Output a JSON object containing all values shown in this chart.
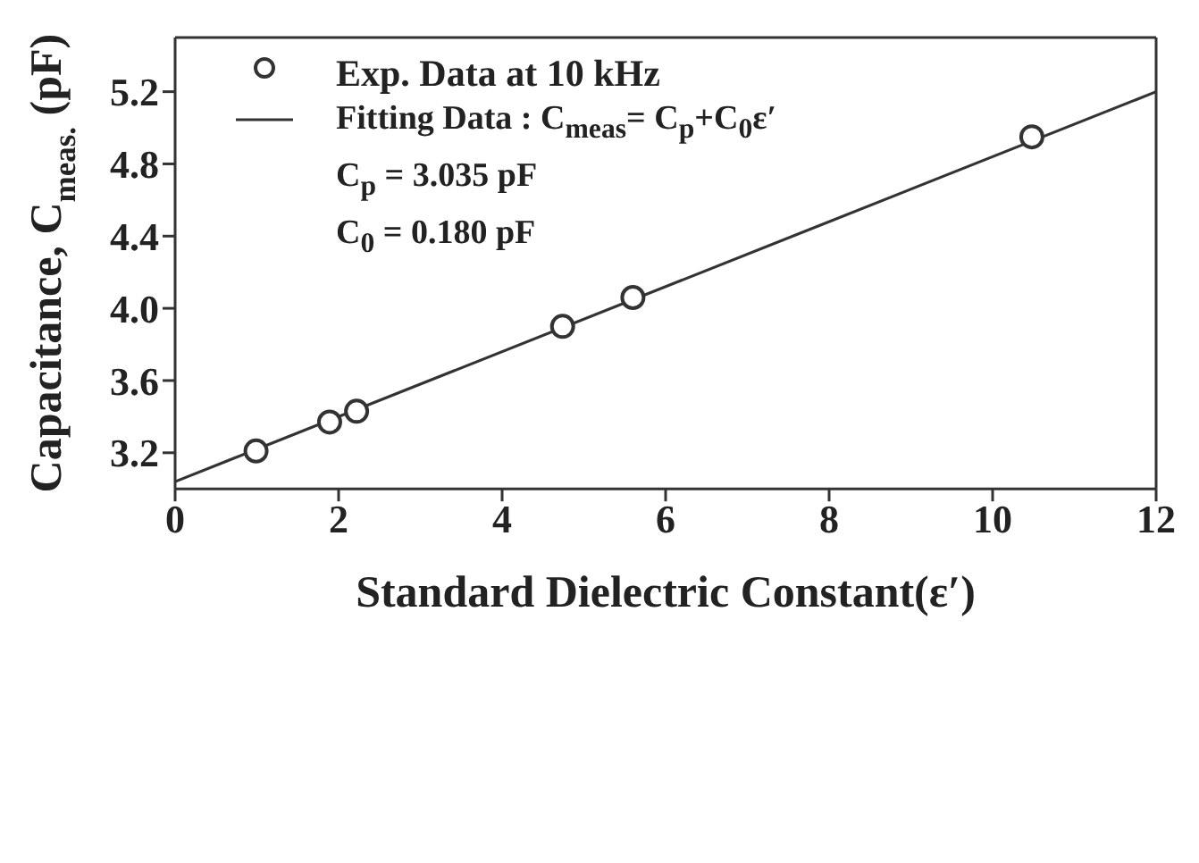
{
  "chart_data": {
    "type": "scatter",
    "xlabel": "Standard Dielectric Constant(ε′)",
    "ylabel": "Capacitance, C$_{meas.}$ (pF)",
    "xlim": [
      0,
      12
    ],
    "xticks": [
      0,
      2,
      4,
      6,
      8,
      10,
      12
    ],
    "ylim": [
      3.0,
      5.5
    ],
    "yticks": [
      {
        "value": 3.2,
        "label": "3.2"
      },
      {
        "value": 3.6,
        "label": "3.6"
      },
      {
        "value": 4,
        "label": "4.0"
      },
      {
        "value": 4.4,
        "label": "4.4"
      },
      {
        "value": 4.8,
        "label": "4.8"
      },
      {
        "value": 5.2,
        "label": "5.2"
      }
    ],
    "grid": false,
    "legend": "top left",
    "series": [
      {
        "name": "Exp. Data at 10 kHz",
        "marker": "circle",
        "color": "#333333",
        "x": [
          0.99,
          1.89,
          2.22,
          4.74,
          5.6,
          10.48
        ],
        "values": [
          3.21,
          3.37,
          3.43,
          3.9,
          4.06,
          4.95
        ]
      },
      {
        "name": "Fitting Data : C$_{meas}$= C$_{p}$+C$_{0}$ε′",
        "type": "line",
        "marker": "none",
        "color": "#333333",
        "x": [
          0,
          12
        ],
        "values": [
          3.04,
          5.2
        ]
      }
    ],
    "annotations": [
      "C$_{p}$ = 3.035 pF",
      "C$_{0}$ = 0.180 pF"
    ]
  }
}
